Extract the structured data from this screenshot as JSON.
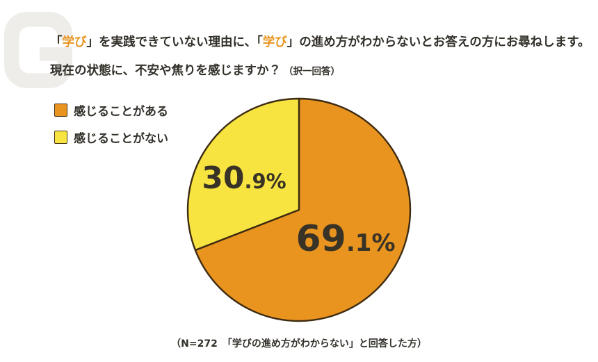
{
  "page": {
    "background_color": "#FFFFFF"
  },
  "watermark": {
    "name": "g-logo",
    "color": "#EFEDEA"
  },
  "header": {
    "accent_color": "#E8941F",
    "text_color": "#33302A",
    "line1_segments": [
      {
        "text": "「",
        "accent": false
      },
      {
        "text": "学び",
        "accent": true
      },
      {
        "text": "」を実践できていない理由に、",
        "accent": false
      },
      {
        "text": "「",
        "accent": false
      },
      {
        "text": "学び",
        "accent": true
      },
      {
        "text": "」の進め方がわからないとお答えの方にお尋ねします。",
        "accent": false
      }
    ],
    "line2": "現在の状態に、不安や焦りを感じますか？",
    "line2_note": "（択一回答）"
  },
  "legend": {
    "items": [
      {
        "label": "感じることがある",
        "color": "#EA9420"
      },
      {
        "label": "感じることがない",
        "color": "#F7E440"
      }
    ]
  },
  "chart_data": {
    "type": "pie",
    "title": "現在の状態に、不安や焦りを感じますか？（択一回答）",
    "start_angle_deg": 0,
    "direction": "clockwise",
    "outline_color": "#3D2B12",
    "label_color": "#383326",
    "legend_position": "top-left",
    "slices": [
      {
        "label": "感じることがある",
        "value": 69.1,
        "display": "69.1%",
        "color": "#EA9420"
      },
      {
        "label": "感じることがない",
        "value": 30.9,
        "display": "30.9%",
        "color": "#F7E440"
      }
    ]
  },
  "footnote": {
    "text": "（N=272　「学びの進め方がわからない」と回答した方）"
  }
}
